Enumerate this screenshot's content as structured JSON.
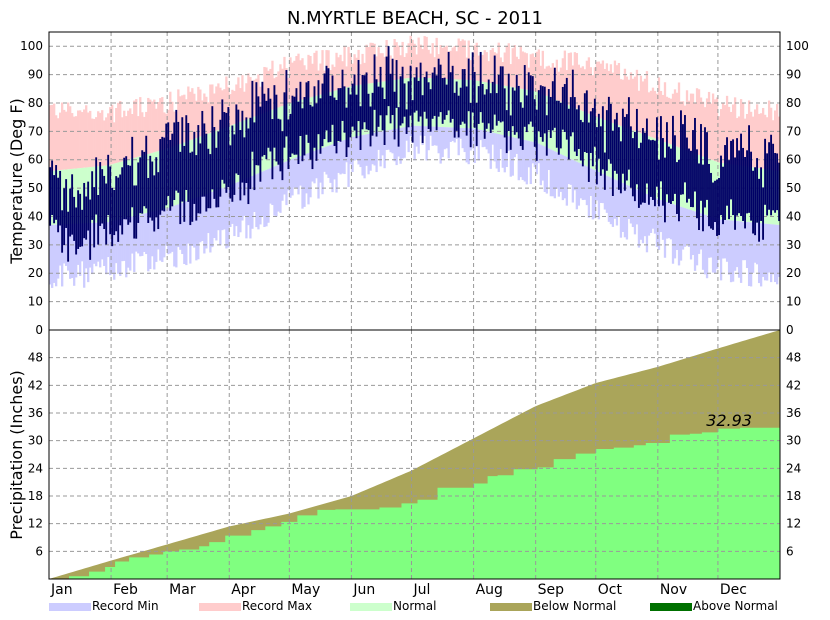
{
  "chart_data": {
    "type": "area",
    "title": "N.MYRTLE BEACH, SC - 2011",
    "months": [
      "Jan",
      "Feb",
      "Mar",
      "Apr",
      "May",
      "Jun",
      "Jul",
      "Aug",
      "Sep",
      "Oct",
      "Nov",
      "Dec"
    ],
    "temperature": {
      "ylabel": "Temperature (Deg F)",
      "ylim": [
        0,
        105
      ],
      "yticks": [
        0,
        10,
        20,
        30,
        40,
        50,
        60,
        70,
        80,
        90,
        100
      ],
      "record_max_anchors": [
        [
          1,
          78
        ],
        [
          30,
          76
        ],
        [
          60,
          80
        ],
        [
          91,
          86
        ],
        [
          121,
          93
        ],
        [
          152,
          97
        ],
        [
          182,
          100
        ],
        [
          213,
          99
        ],
        [
          244,
          96
        ],
        [
          274,
          93
        ],
        [
          305,
          86
        ],
        [
          335,
          79
        ],
        [
          365,
          77
        ]
      ],
      "record_min_anchors": [
        [
          1,
          18
        ],
        [
          30,
          21
        ],
        [
          60,
          25
        ],
        [
          91,
          33
        ],
        [
          121,
          45
        ],
        [
          152,
          56
        ],
        [
          182,
          64
        ],
        [
          213,
          63
        ],
        [
          244,
          55
        ],
        [
          274,
          42
        ],
        [
          305,
          30
        ],
        [
          335,
          21
        ],
        [
          365,
          19
        ]
      ],
      "normal_high_anchors": [
        [
          1,
          56
        ],
        [
          30,
          58
        ],
        [
          60,
          64
        ],
        [
          91,
          72
        ],
        [
          121,
          80
        ],
        [
          152,
          86
        ],
        [
          182,
          89
        ],
        [
          213,
          88
        ],
        [
          244,
          84
        ],
        [
          274,
          75
        ],
        [
          305,
          67
        ],
        [
          335,
          59
        ],
        [
          365,
          56
        ]
      ],
      "normal_low_anchors": [
        [
          1,
          37
        ],
        [
          30,
          38
        ],
        [
          60,
          43
        ],
        [
          91,
          51
        ],
        [
          121,
          60
        ],
        [
          152,
          68
        ],
        [
          182,
          72
        ],
        [
          213,
          71
        ],
        [
          244,
          66
        ],
        [
          274,
          56
        ],
        [
          305,
          46
        ],
        [
          335,
          39
        ],
        [
          365,
          37
        ]
      ],
      "observed_high_anchors": [
        [
          1,
          52
        ],
        [
          15,
          46
        ],
        [
          30,
          58
        ],
        [
          45,
          60
        ],
        [
          60,
          66
        ],
        [
          75,
          70
        ],
        [
          91,
          74
        ],
        [
          105,
          80
        ],
        [
          121,
          80
        ],
        [
          135,
          84
        ],
        [
          152,
          88
        ],
        [
          166,
          90
        ],
        [
          182,
          89
        ],
        [
          196,
          90
        ],
        [
          213,
          88
        ],
        [
          228,
          86
        ],
        [
          244,
          83
        ],
        [
          258,
          82
        ],
        [
          274,
          74
        ],
        [
          288,
          72
        ],
        [
          305,
          70
        ],
        [
          320,
          67
        ],
        [
          335,
          62
        ],
        [
          350,
          62
        ],
        [
          365,
          58
        ]
      ],
      "observed_low_anchors": [
        [
          1,
          34
        ],
        [
          15,
          30
        ],
        [
          30,
          36
        ],
        [
          45,
          39
        ],
        [
          60,
          42
        ],
        [
          75,
          44
        ],
        [
          91,
          49
        ],
        [
          105,
          56
        ],
        [
          121,
          60
        ],
        [
          135,
          64
        ],
        [
          152,
          70
        ],
        [
          166,
          72
        ],
        [
          182,
          73
        ],
        [
          196,
          74
        ],
        [
          213,
          72
        ],
        [
          228,
          70
        ],
        [
          244,
          66
        ],
        [
          258,
          64
        ],
        [
          274,
          56
        ],
        [
          288,
          50
        ],
        [
          305,
          46
        ],
        [
          320,
          44
        ],
        [
          335,
          40
        ],
        [
          350,
          38
        ],
        [
          365,
          38
        ]
      ]
    },
    "precipitation": {
      "ylabel": "Precipitation (Inches)",
      "ylim": [
        0,
        54
      ],
      "yticks": [
        6,
        12,
        18,
        24,
        30,
        36,
        42,
        48
      ],
      "normal_total": 54.0,
      "observed_total": 32.93,
      "observed_total_label": "32.93",
      "normal_anchors": [
        [
          0,
          0
        ],
        [
          31,
          4.0
        ],
        [
          59,
          7.5
        ],
        [
          90,
          11.4
        ],
        [
          120,
          14.2
        ],
        [
          151,
          18.0
        ],
        [
          181,
          23.5
        ],
        [
          212,
          30.5
        ],
        [
          243,
          37.5
        ],
        [
          273,
          42.5
        ],
        [
          304,
          46.0
        ],
        [
          334,
          50.0
        ],
        [
          365,
          54.0
        ]
      ],
      "observed_steps": [
        [
          0,
          0
        ],
        [
          10,
          0.6
        ],
        [
          20,
          1.6
        ],
        [
          28,
          2.6
        ],
        [
          33,
          3.8
        ],
        [
          40,
          4.7
        ],
        [
          50,
          5.3
        ],
        [
          57,
          6.0
        ],
        [
          65,
          6.4
        ],
        [
          75,
          7.1
        ],
        [
          80,
          8.0
        ],
        [
          88,
          9.4
        ],
        [
          101,
          10.6
        ],
        [
          108,
          11.4
        ],
        [
          116,
          12.4
        ],
        [
          124,
          13.8
        ],
        [
          134,
          15.0
        ],
        [
          143,
          15.1
        ],
        [
          155,
          15.1
        ],
        [
          165,
          15.5
        ],
        [
          176,
          16.4
        ],
        [
          184,
          17.2
        ],
        [
          194,
          19.8
        ],
        [
          203,
          19.8
        ],
        [
          212,
          20.7
        ],
        [
          219,
          22.3
        ],
        [
          224,
          22.5
        ],
        [
          232,
          23.8
        ],
        [
          244,
          24.2
        ],
        [
          252,
          26.0
        ],
        [
          263,
          27.2
        ],
        [
          273,
          28.2
        ],
        [
          282,
          28.5
        ],
        [
          292,
          29.0
        ],
        [
          298,
          29.5
        ],
        [
          310,
          31.3
        ],
        [
          320,
          31.5
        ],
        [
          326,
          31.8
        ],
        [
          334,
          32.6
        ],
        [
          345,
          32.8
        ],
        [
          365,
          32.93
        ]
      ]
    },
    "legend": [
      {
        "label": "Record Min",
        "color": "#ccccff"
      },
      {
        "label": "Record Max",
        "color": "#ffcccc"
      },
      {
        "label": "Normal",
        "color": "#ccffcc"
      },
      {
        "label": "Below Normal",
        "color": "#aaa55a"
      },
      {
        "label": "Above Normal",
        "color": "#007000"
      }
    ],
    "colors": {
      "record_min": "#ccccff",
      "record_max": "#ffcccc",
      "normal": "#ccffcc",
      "observed": "#000066",
      "below_normal": "#aaa55a",
      "above_normal": "#007000",
      "precip_observed": "#80ff80",
      "grid": "#999999"
    }
  }
}
